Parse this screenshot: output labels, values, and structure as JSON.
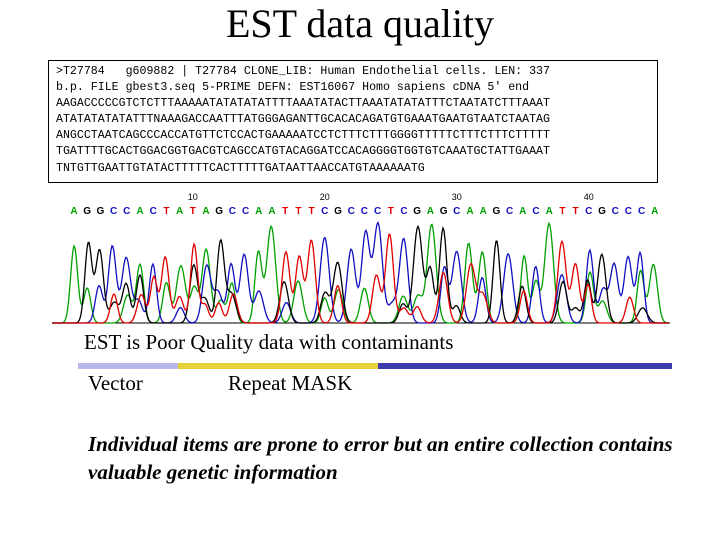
{
  "slide": {
    "title": "EST data quality"
  },
  "sequence": {
    "lines": [
      ">T27784   g609882 | T27784 CLONE_LIB: Human Endothelial cells. LEN: 337",
      "b.p. FILE gbest3.seq 5-PRIME DEFN: EST16067 Homo sapiens cDNA 5' end",
      "AAGACCCCCGTCTCTTTAAAAATATATATATTTTAAATATACTTAAATATATATTTCTAATATCTTTAAAT",
      "ATATATATATATTTNAAAGACCAATTTATGGGAGANTTGCACACAGATGTGAAATGAATGTAATCTAATAG",
      "ANGCCTAATCAGCCCACCATGTTCTCCACTGAAAAATCCTCTTTCTTTGGGGTTTTTCTTTCTTTCTTTTT",
      "TGATTTTGCACTGGACGGTGACGTCAGCCATGTACAGGATCCACAGGGGTGGTGTCAAATGCTATTGAAAT",
      "TNTGTTGAATTGTATACTTTTTCACTTTTTGATAATTAACCATGTAAAAAATG"
    ]
  },
  "trace": {
    "position_labels": [
      "10",
      "20",
      "30",
      "40"
    ],
    "base_calls": "AGGCCACTATAGCCAATTTCGCCCTCGAGCAAGCACATTCGCCCA",
    "colors": {
      "A": "#00a000",
      "C": "#1010c0",
      "G": "#000000",
      "T": "#e00000"
    }
  },
  "legend": {
    "heading": "EST is Poor Quality data with contaminants",
    "vector_label": "Vector",
    "repeat_label": "Repeat MASK",
    "bar_colors": [
      "#b8b8ec",
      "#e8d23a",
      "#3c3caa"
    ]
  },
  "note": "Individual items are prone to error but an entire collection contains valuable genetic information"
}
